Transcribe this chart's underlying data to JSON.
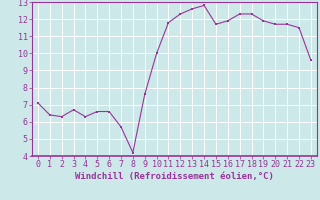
{
  "x": [
    0,
    1,
    2,
    3,
    4,
    5,
    6,
    7,
    8,
    9,
    10,
    11,
    12,
    13,
    14,
    15,
    16,
    17,
    18,
    19,
    20,
    21,
    22,
    23
  ],
  "y": [
    7.1,
    6.4,
    6.3,
    6.7,
    6.3,
    6.6,
    6.6,
    5.7,
    4.2,
    7.6,
    10.0,
    11.8,
    12.3,
    12.6,
    12.8,
    11.7,
    11.9,
    12.3,
    12.3,
    11.9,
    11.7,
    11.7,
    11.5,
    9.6
  ],
  "line_color": "#993399",
  "marker_color": "#993399",
  "bg_color": "#cce8e8",
  "grid_color": "#ffffff",
  "xlabel": "Windchill (Refroidissement éolien,°C)",
  "ylim": [
    4,
    13
  ],
  "xlim": [
    -0.5,
    23.5
  ],
  "yticks": [
    4,
    5,
    6,
    7,
    8,
    9,
    10,
    11,
    12,
    13
  ],
  "xticks": [
    0,
    1,
    2,
    3,
    4,
    5,
    6,
    7,
    8,
    9,
    10,
    11,
    12,
    13,
    14,
    15,
    16,
    17,
    18,
    19,
    20,
    21,
    22,
    23
  ],
  "tick_color": "#993399",
  "axis_color": "#993399",
  "label_fontsize": 6.5,
  "tick_fontsize": 6.0,
  "title": ""
}
